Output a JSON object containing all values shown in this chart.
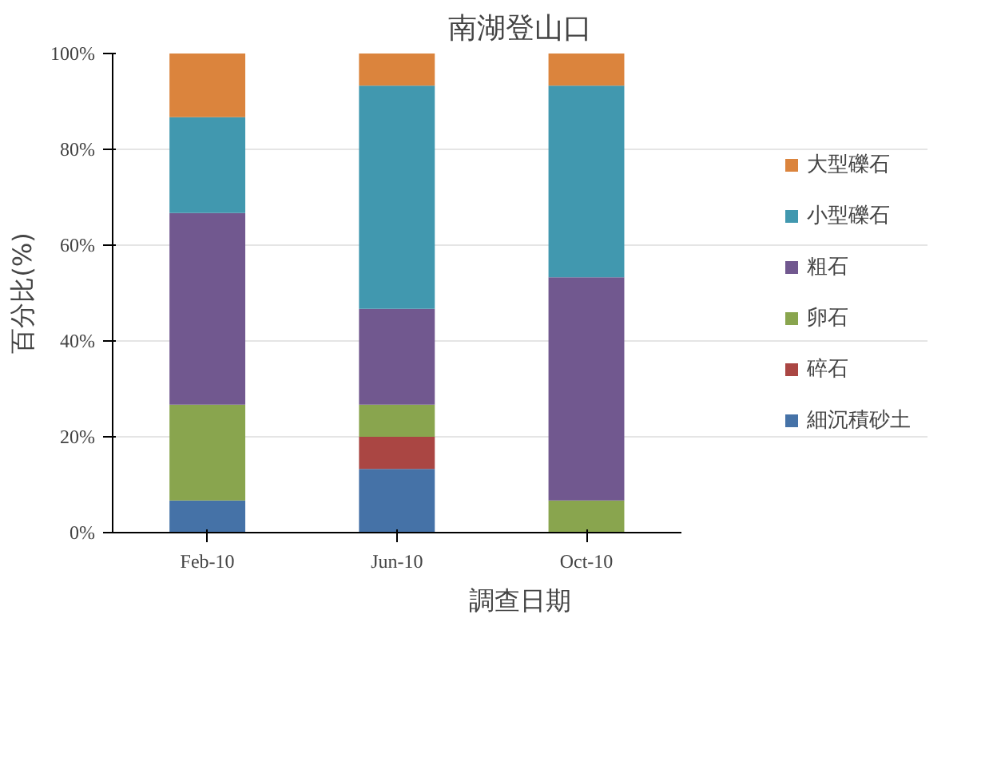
{
  "chart_data": {
    "type": "bar",
    "stacked": true,
    "title": "南湖登山口",
    "xlabel": "調查日期",
    "ylabel": "百分比(%)",
    "categories": [
      "Feb-10",
      "Jun-10",
      "Oct-10"
    ],
    "series": [
      {
        "name": "細沉積砂土",
        "color": "#4572a7",
        "values": [
          6.7,
          13.3,
          0
        ]
      },
      {
        "name": "碎石",
        "color": "#aa4643",
        "values": [
          0,
          6.7,
          0
        ]
      },
      {
        "name": "卵石",
        "color": "#89a54e",
        "values": [
          20,
          6.7,
          6.7
        ]
      },
      {
        "name": "粗石",
        "color": "#71588f",
        "values": [
          40,
          20,
          46.6
        ]
      },
      {
        "name": "小型礫石",
        "color": "#4198af",
        "values": [
          20,
          46.6,
          40
        ]
      },
      {
        "name": "大型礫石",
        "color": "#db843d",
        "values": [
          13.3,
          6.7,
          6.7
        ]
      }
    ],
    "ylim": [
      0,
      100
    ],
    "yticks": [
      {
        "value": 0,
        "label": "0%"
      },
      {
        "value": 20,
        "label": "20%"
      },
      {
        "value": 40,
        "label": "40%"
      },
      {
        "value": 60,
        "label": "60%"
      },
      {
        "value": 80,
        "label": "80%"
      },
      {
        "value": 100,
        "label": "100%"
      }
    ],
    "grid": "y",
    "legend": "right"
  }
}
